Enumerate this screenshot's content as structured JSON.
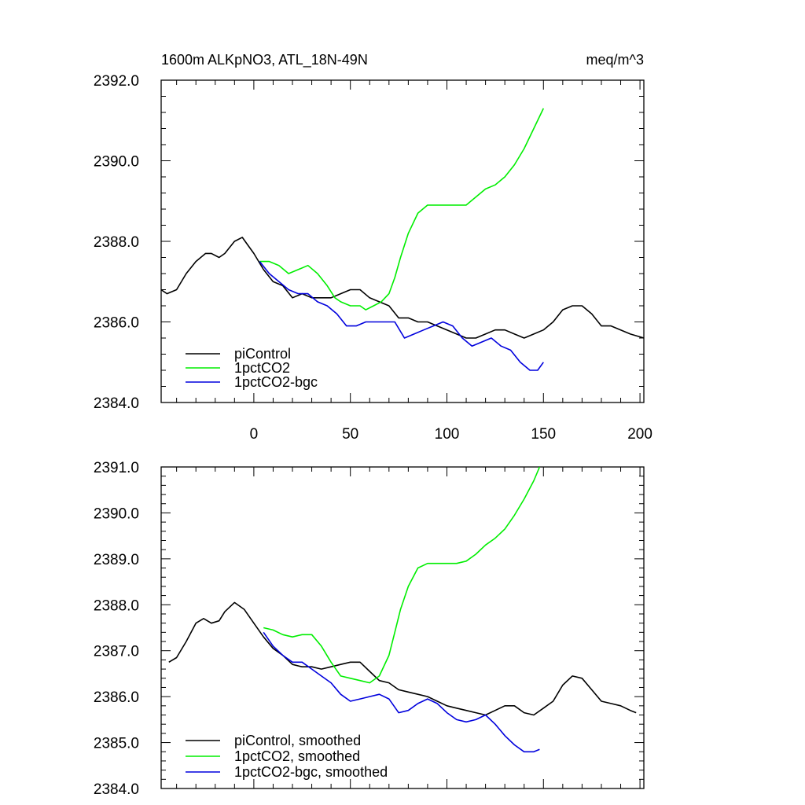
{
  "chart_data": [
    {
      "type": "line",
      "title": "1600m ALKpNO3, ATL_18N-49N",
      "units": "meq/m^3",
      "xlabel": "",
      "ylabel": "",
      "xlim": [
        -48,
        202
      ],
      "ylim": [
        2384.0,
        2392.0
      ],
      "xticks": [
        0,
        50,
        100,
        150,
        200
      ],
      "xtick_labels": [
        "0",
        "50",
        "100",
        "150",
        "200"
      ],
      "yticks": [
        2384.0,
        2386.0,
        2388.0,
        2390.0,
        2392.0
      ],
      "ytick_labels": [
        "2384.0",
        "2386.0",
        "2388.0",
        "2390.0",
        "2392.0"
      ],
      "grid": false,
      "legend": "bottom-left",
      "series": [
        {
          "name": "piControl",
          "color": "#000000",
          "x": [
            -48,
            -45,
            -40,
            -35,
            -30,
            -25,
            -22,
            -18,
            -15,
            -10,
            -6,
            -3,
            0,
            5,
            10,
            15,
            20,
            25,
            30,
            35,
            40,
            45,
            50,
            55,
            60,
            65,
            70,
            75,
            80,
            85,
            90,
            95,
            100,
            105,
            110,
            115,
            120,
            125,
            130,
            135,
            140,
            145,
            150,
            155,
            160,
            165,
            170,
            175,
            180,
            185,
            190,
            195,
            202
          ],
          "y": [
            2386.8,
            2386.7,
            2386.8,
            2387.2,
            2387.5,
            2387.7,
            2387.7,
            2387.6,
            2387.7,
            2388.0,
            2388.1,
            2387.9,
            2387.7,
            2387.3,
            2387.0,
            2386.9,
            2386.6,
            2386.7,
            2386.6,
            2386.6,
            2386.6,
            2386.7,
            2386.8,
            2386.8,
            2386.6,
            2386.5,
            2386.4,
            2386.1,
            2386.1,
            2386.0,
            2386.0,
            2385.9,
            2385.8,
            2385.7,
            2385.6,
            2385.6,
            2385.7,
            2385.8,
            2385.8,
            2385.7,
            2385.6,
            2385.7,
            2385.8,
            2386.0,
            2386.3,
            2386.4,
            2386.4,
            2386.2,
            2385.9,
            2385.9,
            2385.8,
            2385.7,
            2385.6
          ]
        },
        {
          "name": "1pctCO2",
          "color": "#00ee00",
          "x": [
            3,
            8,
            13,
            18,
            23,
            28,
            33,
            38,
            42,
            45,
            50,
            55,
            58,
            62,
            66,
            70,
            73,
            76,
            80,
            85,
            90,
            95,
            100,
            105,
            110,
            115,
            120,
            125,
            130,
            135,
            140,
            145,
            150
          ],
          "y": [
            2387.5,
            2387.5,
            2387.4,
            2387.2,
            2387.3,
            2387.4,
            2387.2,
            2386.9,
            2386.6,
            2386.5,
            2386.4,
            2386.4,
            2386.3,
            2386.4,
            2386.5,
            2386.7,
            2387.1,
            2387.6,
            2388.2,
            2388.7,
            2388.9,
            2388.9,
            2388.9,
            2388.9,
            2388.9,
            2389.1,
            2389.3,
            2389.4,
            2389.6,
            2389.9,
            2390.3,
            2390.8,
            2391.3
          ]
        },
        {
          "name": "1pctCO2-bgc",
          "color": "#0000dd",
          "x": [
            3,
            8,
            13,
            18,
            23,
            28,
            33,
            38,
            43,
            48,
            53,
            58,
            63,
            68,
            73,
            78,
            83,
            88,
            93,
            98,
            103,
            108,
            113,
            118,
            123,
            128,
            133,
            138,
            143,
            147,
            150
          ],
          "y": [
            2387.5,
            2387.2,
            2387.0,
            2386.8,
            2386.7,
            2386.7,
            2386.5,
            2386.4,
            2386.2,
            2385.9,
            2385.9,
            2386.0,
            2386.0,
            2386.0,
            2386.0,
            2385.6,
            2385.7,
            2385.8,
            2385.9,
            2386.0,
            2385.9,
            2385.6,
            2385.4,
            2385.5,
            2385.6,
            2385.4,
            2385.3,
            2385.0,
            2384.8,
            2384.8,
            2385.0
          ]
        }
      ]
    },
    {
      "type": "line",
      "title": "",
      "xlabel": "",
      "ylabel": "",
      "xlim": [
        -48,
        202
      ],
      "ylim": [
        2384.0,
        2391.0
      ],
      "xticks": [
        0,
        50,
        100,
        150,
        200
      ],
      "xtick_labels": [],
      "yticks": [
        2384.0,
        2385.0,
        2386.0,
        2387.0,
        2388.0,
        2389.0,
        2390.0,
        2391.0
      ],
      "ytick_labels": [
        "2384.0",
        "2385.0",
        "2386.0",
        "2387.0",
        "2388.0",
        "2389.0",
        "2390.0",
        "2391.0"
      ],
      "grid": false,
      "legend": "bottom-left",
      "series": [
        {
          "name": "piControl, smoothed",
          "color": "#000000",
          "x": [
            -44,
            -40,
            -35,
            -30,
            -26,
            -22,
            -18,
            -15,
            -10,
            -5,
            0,
            5,
            10,
            15,
            20,
            25,
            30,
            35,
            40,
            45,
            50,
            55,
            60,
            65,
            70,
            75,
            80,
            85,
            90,
            95,
            100,
            105,
            110,
            115,
            120,
            125,
            130,
            135,
            140,
            145,
            150,
            155,
            160,
            165,
            170,
            175,
            180,
            185,
            190,
            195,
            198
          ],
          "y": [
            2386.75,
            2386.85,
            2387.2,
            2387.6,
            2387.7,
            2387.6,
            2387.65,
            2387.85,
            2388.05,
            2387.9,
            2387.6,
            2387.3,
            2387.05,
            2386.9,
            2386.7,
            2386.65,
            2386.65,
            2386.6,
            2386.65,
            2386.7,
            2386.75,
            2386.75,
            2386.55,
            2386.35,
            2386.3,
            2386.15,
            2386.1,
            2386.05,
            2386.0,
            2385.9,
            2385.8,
            2385.75,
            2385.7,
            2385.65,
            2385.6,
            2385.7,
            2385.8,
            2385.8,
            2385.65,
            2385.6,
            2385.75,
            2385.9,
            2386.25,
            2386.45,
            2386.4,
            2386.15,
            2385.9,
            2385.85,
            2385.8,
            2385.7,
            2385.65
          ]
        },
        {
          "name": "1pctCO2, smoothed",
          "color": "#00ee00",
          "x": [
            5,
            10,
            15,
            20,
            25,
            30,
            35,
            40,
            45,
            50,
            55,
            60,
            65,
            70,
            73,
            76,
            80,
            85,
            90,
            95,
            100,
            105,
            110,
            115,
            120,
            125,
            130,
            135,
            140,
            145,
            148
          ],
          "y": [
            2387.5,
            2387.45,
            2387.35,
            2387.3,
            2387.35,
            2387.35,
            2387.1,
            2386.75,
            2386.45,
            2386.4,
            2386.35,
            2386.3,
            2386.45,
            2386.9,
            2387.4,
            2387.9,
            2388.4,
            2388.8,
            2388.9,
            2388.9,
            2388.9,
            2388.9,
            2388.95,
            2389.1,
            2389.3,
            2389.45,
            2389.65,
            2389.95,
            2390.3,
            2390.7,
            2391.0
          ]
        },
        {
          "name": "1pctCO2-bgc, smoothed",
          "color": "#0000dd",
          "x": [
            5,
            10,
            15,
            20,
            25,
            30,
            35,
            40,
            45,
            50,
            55,
            60,
            65,
            70,
            75,
            80,
            85,
            90,
            95,
            100,
            105,
            110,
            115,
            120,
            125,
            130,
            135,
            140,
            145,
            148
          ],
          "y": [
            2387.4,
            2387.1,
            2386.9,
            2386.75,
            2386.75,
            2386.6,
            2386.45,
            2386.3,
            2386.05,
            2385.9,
            2385.95,
            2386.0,
            2386.05,
            2385.95,
            2385.65,
            2385.7,
            2385.85,
            2385.95,
            2385.85,
            2385.65,
            2385.5,
            2385.45,
            2385.5,
            2385.6,
            2385.4,
            2385.15,
            2384.95,
            2384.8,
            2384.8,
            2384.85
          ]
        }
      ]
    }
  ]
}
